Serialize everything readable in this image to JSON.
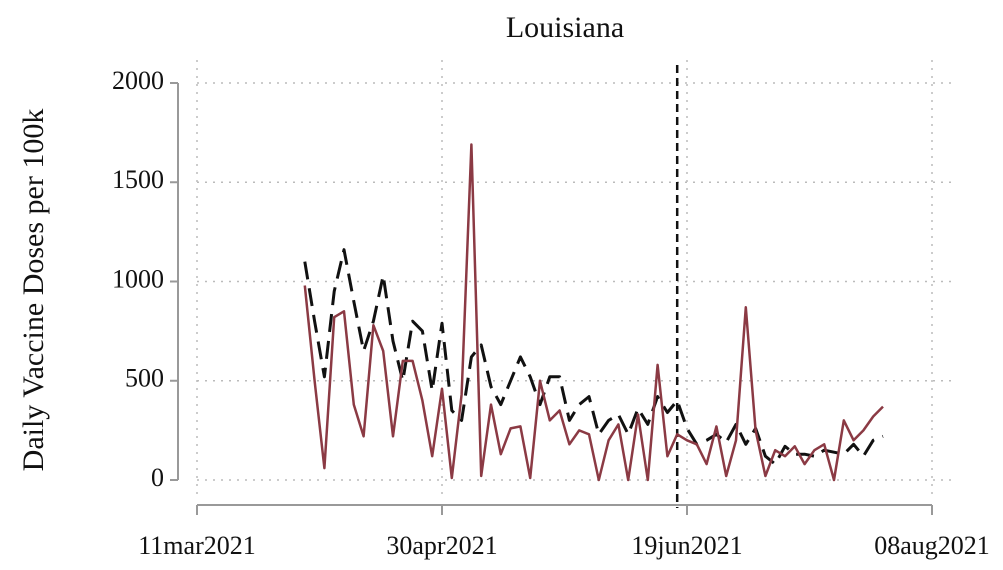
{
  "chart_data": {
    "type": "line",
    "title": "Louisiana",
    "y_label": "Daily Vaccine Doses per 100k",
    "x": [
      "2021-04-02",
      "2021-04-04",
      "2021-04-06",
      "2021-04-08",
      "2021-04-10",
      "2021-04-12",
      "2021-04-14",
      "2021-04-16",
      "2021-04-18",
      "2021-04-20",
      "2021-04-22",
      "2021-04-24",
      "2021-04-26",
      "2021-04-28",
      "2021-04-30",
      "2021-05-02",
      "2021-05-04",
      "2021-05-06",
      "2021-05-08",
      "2021-05-10",
      "2021-05-12",
      "2021-05-14",
      "2021-05-16",
      "2021-05-18",
      "2021-05-20",
      "2021-05-22",
      "2021-05-24",
      "2021-05-26",
      "2021-05-28",
      "2021-05-30",
      "2021-06-01",
      "2021-06-03",
      "2021-06-05",
      "2021-06-07",
      "2021-06-09",
      "2021-06-11",
      "2021-06-13",
      "2021-06-15",
      "2021-06-17",
      "2021-06-19",
      "2021-06-21",
      "2021-06-23",
      "2021-06-25",
      "2021-06-27",
      "2021-06-29",
      "2021-07-01",
      "2021-07-03",
      "2021-07-05",
      "2021-07-07",
      "2021-07-09",
      "2021-07-11",
      "2021-07-13",
      "2021-07-15",
      "2021-07-17",
      "2021-07-19",
      "2021-07-21",
      "2021-07-23",
      "2021-07-25",
      "2021-07-27",
      "2021-07-29"
    ],
    "series": [
      {
        "color": "#8b3a44",
        "dash": false,
        "values": [
          980,
          500,
          60,
          820,
          850,
          380,
          220,
          780,
          650,
          220,
          600,
          600,
          400,
          120,
          460,
          10,
          430,
          1690,
          20,
          380,
          130,
          260,
          270,
          10,
          500,
          300,
          350,
          180,
          250,
          230,
          0,
          200,
          280,
          0,
          330,
          0,
          580,
          120,
          230,
          200,
          180,
          80,
          270,
          20,
          200,
          870,
          250,
          20,
          150,
          120,
          170,
          80,
          150,
          180,
          0,
          300,
          200,
          250,
          320,
          370
        ]
      },
      {
        "color": "#111111",
        "dash": true,
        "values": [
          1100,
          800,
          520,
          950,
          1160,
          900,
          650,
          800,
          1030,
          700,
          500,
          800,
          750,
          450,
          790,
          350,
          300,
          620,
          680,
          470,
          380,
          500,
          620,
          520,
          380,
          520,
          520,
          300,
          380,
          420,
          230,
          300,
          330,
          230,
          360,
          280,
          420,
          340,
          400,
          260,
          180,
          200,
          230,
          190,
          280,
          180,
          260,
          120,
          80,
          170,
          130,
          130,
          120,
          150,
          140,
          130,
          180,
          120,
          200,
          220
        ]
      }
    ],
    "vline": "2021-06-17",
    "xlim": [
      "2021-03-11",
      "2021-08-08"
    ],
    "xticks": [
      {
        "value": "2021-03-11",
        "label": "11mar2021"
      },
      {
        "value": "2021-04-30",
        "label": "30apr2021"
      },
      {
        "value": "2021-06-19",
        "label": "19jun2021"
      },
      {
        "value": "2021-08-08",
        "label": "08aug2021"
      }
    ],
    "ylim": [
      0,
      2000
    ],
    "yticks": [
      0,
      500,
      1000,
      1500,
      2000
    ],
    "grid": true
  }
}
